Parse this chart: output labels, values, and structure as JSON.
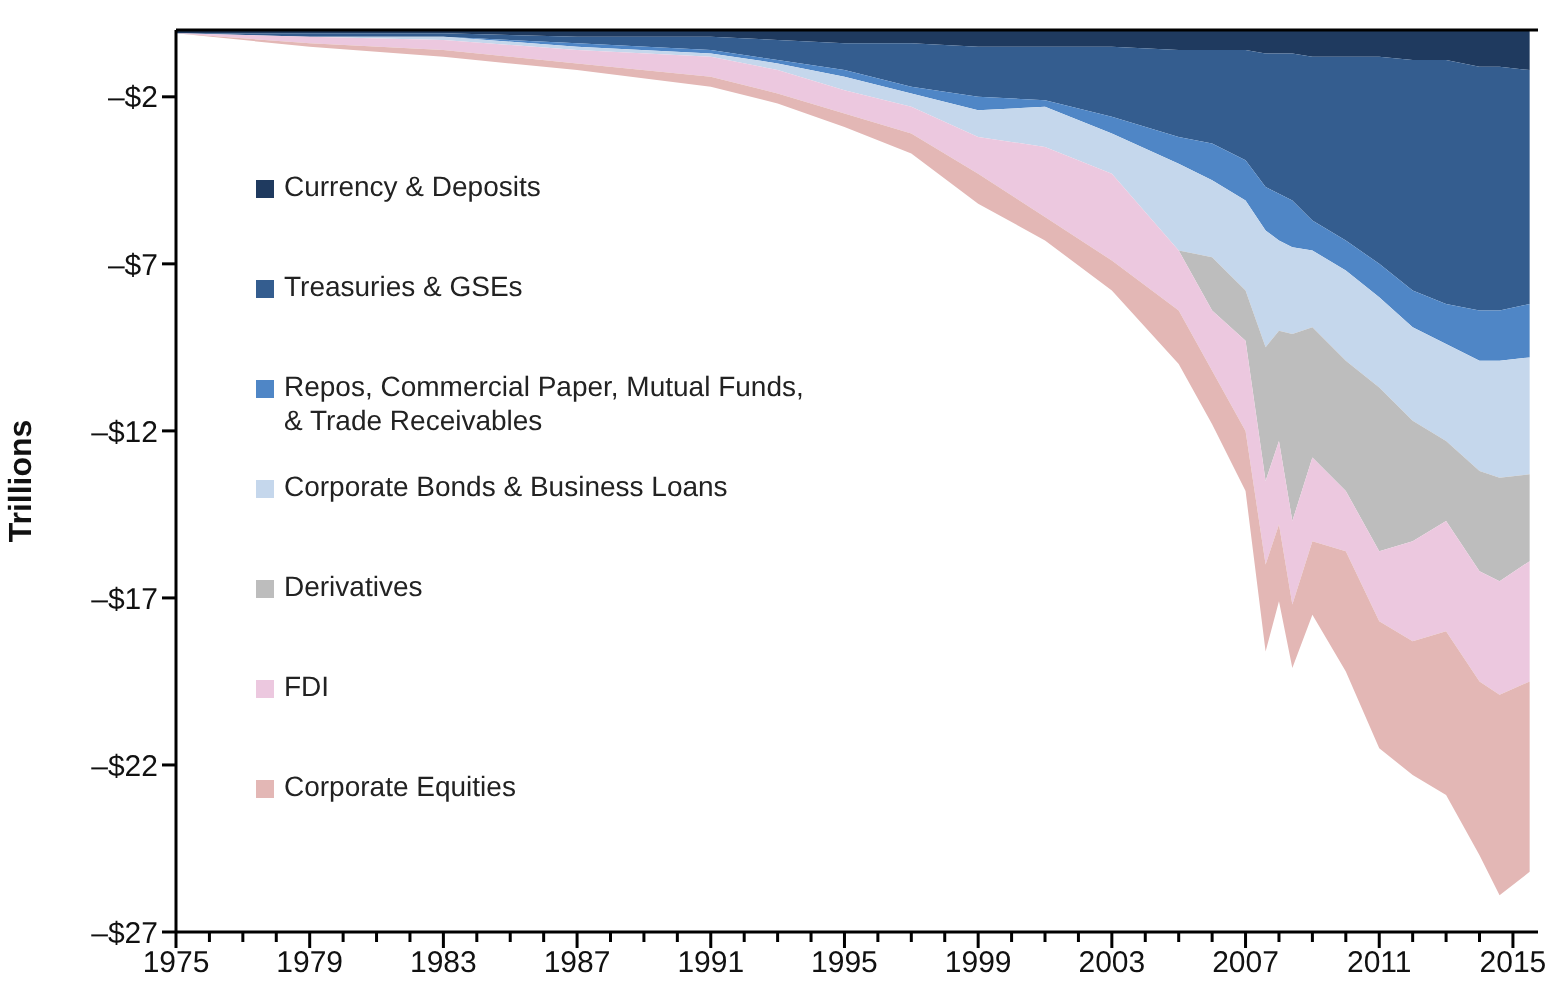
{
  "chart_data": {
    "type": "area",
    "stacked": true,
    "ylabel": "Trillions",
    "legend": "left",
    "x": [
      1975,
      1979,
      1983,
      1987,
      1991,
      1993,
      1995,
      1997,
      1999,
      2001,
      2003,
      2005,
      2006,
      2007,
      2007.6,
      2008,
      2008.4,
      2009,
      2010,
      2011,
      2012,
      2013,
      2014,
      2014.6,
      2015.5
    ],
    "xlim": [
      1975,
      2015.75
    ],
    "xticks": [
      1975,
      {
        "value": 1976,
        "label": null
      },
      {
        "value": 1977,
        "label": null
      },
      {
        "value": 1978,
        "label": null
      },
      1979,
      {
        "value": 1980,
        "label": null
      },
      {
        "value": 1981,
        "label": null
      },
      {
        "value": 1982,
        "label": null
      },
      1983,
      {
        "value": 1984,
        "label": null
      },
      {
        "value": 1985,
        "label": null
      },
      {
        "value": 1986,
        "label": null
      },
      1987,
      {
        "value": 1988,
        "label": null
      },
      {
        "value": 1989,
        "label": null
      },
      {
        "value": 1990,
        "label": null
      },
      1991,
      {
        "value": 1992,
        "label": null
      },
      {
        "value": 1993,
        "label": null
      },
      {
        "value": 1994,
        "label": null
      },
      1995,
      {
        "value": 1996,
        "label": null
      },
      {
        "value": 1997,
        "label": null
      },
      {
        "value": 1998,
        "label": null
      },
      1999,
      {
        "value": 2000,
        "label": null
      },
      {
        "value": 2001,
        "label": null
      },
      {
        "value": 2002,
        "label": null
      },
      2003,
      {
        "value": 2004,
        "label": null
      },
      {
        "value": 2005,
        "label": null
      },
      {
        "value": 2006,
        "label": null
      },
      2007,
      {
        "value": 2008,
        "label": null
      },
      {
        "value": 2009,
        "label": null
      },
      {
        "value": 2010,
        "label": null
      },
      2011,
      {
        "value": 2012,
        "label": null
      },
      {
        "value": 2013,
        "label": null
      },
      {
        "value": 2014,
        "label": null
      },
      2015
    ],
    "ylim": [
      -27,
      0
    ],
    "yticks": [
      {
        "value": -2,
        "label": "–$2"
      },
      {
        "value": -7,
        "label": "–$7"
      },
      {
        "value": -12,
        "label": "–$12"
      },
      {
        "value": -17,
        "label": "–$17"
      },
      {
        "value": -22,
        "label": "–$22"
      },
      {
        "value": -27,
        "label": "–$27"
      }
    ],
    "series": [
      {
        "name": "Currency & Deposits",
        "color": "#1f3a5f",
        "values": [
          -0.1,
          -0.1,
          -0.1,
          -0.2,
          -0.2,
          -0.3,
          -0.4,
          -0.4,
          -0.5,
          -0.5,
          -0.5,
          -0.6,
          -0.6,
          -0.6,
          -0.7,
          -0.7,
          -0.7,
          -0.8,
          -0.8,
          -0.8,
          -0.9,
          -0.9,
          -1.1,
          -1.1,
          -1.2
        ]
      },
      {
        "name": "Treasuries & GSEs",
        "color": "#345d8f",
        "values": [
          0,
          -0.1,
          -0.1,
          -0.2,
          -0.4,
          -0.6,
          -0.8,
          -1.3,
          -1.5,
          -1.6,
          -2.1,
          -2.6,
          -2.8,
          -3.3,
          -4,
          -4.2,
          -4.4,
          -4.9,
          -5.5,
          -6.2,
          -6.9,
          -7.3,
          -7.3,
          -7.3,
          -7
        ]
      },
      {
        "name": "Repos, Commercial Paper, Mutual Funds, & Trade Receivables",
        "color": "#4f86c6",
        "values": [
          0,
          0,
          0,
          -0.1,
          -0.1,
          -0.1,
          -0.2,
          -0.2,
          -0.4,
          -0.2,
          -0.5,
          -0.8,
          -1.1,
          -1.2,
          -1.3,
          -1.4,
          -1.4,
          -0.9,
          -0.9,
          -1,
          -1.1,
          -1.2,
          -1.5,
          -1.5,
          -1.6
        ]
      },
      {
        "name": "Corporate Bonds & Business Loans",
        "color": "#c5d7ec",
        "values": [
          0,
          0,
          -0.1,
          -0.1,
          -0.1,
          -0.2,
          -0.4,
          -0.4,
          -0.8,
          -1.2,
          -1.2,
          -2.6,
          -2.3,
          -2.7,
          -3.5,
          -2.7,
          -2.6,
          -2.3,
          -2.7,
          -2.7,
          -2.8,
          -2.9,
          -3.3,
          -3.5,
          -3.5
        ]
      },
      {
        "name": "Derivatives",
        "color": "#bdbdbd",
        "values": [
          0,
          0,
          0,
          0,
          0,
          0,
          0,
          0,
          0,
          0,
          0,
          0,
          -1.6,
          -1.5,
          -4,
          -3.3,
          -5.6,
          -3.9,
          -3.9,
          -4.9,
          -3.6,
          -2.4,
          -3,
          -3.1,
          -2.6
        ]
      },
      {
        "name": "FDI",
        "color": "#ecc8df",
        "values": [
          0,
          -0.2,
          -0.3,
          -0.4,
          -0.6,
          -0.7,
          -0.7,
          -0.8,
          -1.1,
          -2.1,
          -2.6,
          -1.8,
          -1.8,
          -2.7,
          -2.5,
          -2.5,
          -2.5,
          -2.5,
          -1.8,
          -2.1,
          -3,
          -3.3,
          -3.3,
          -3.4,
          -3.6
        ]
      },
      {
        "name": "Corporate Equities",
        "color": "#e3b7b5",
        "values": [
          0,
          -0.1,
          -0.2,
          -0.2,
          -0.3,
          -0.3,
          -0.4,
          -0.6,
          -0.9,
          -0.7,
          -0.9,
          -1.6,
          -1.6,
          -1.8,
          -2.6,
          -2.3,
          -1.9,
          -2.2,
          -3.6,
          -3.8,
          -4,
          -4.9,
          -5.2,
          -6,
          -5.7
        ]
      }
    ]
  }
}
